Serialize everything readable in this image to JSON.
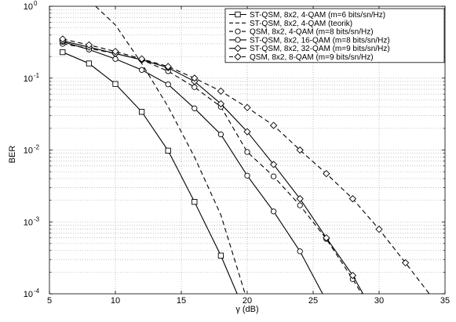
{
  "chart_data": {
    "type": "line",
    "xlabel": "γ (dB)",
    "ylabel": "BER",
    "xlim": [
      5,
      35
    ],
    "ylim": [
      0.0001,
      1
    ],
    "yscale": "log",
    "grid": true,
    "legend_position": "top-right",
    "xticks": [
      5,
      10,
      15,
      20,
      25,
      30,
      35
    ],
    "xtick_labels": [
      "5",
      "10",
      "15",
      "20",
      "25",
      "30",
      "35"
    ],
    "yticks": [
      {
        "value": 1,
        "base": "10",
        "exp": "0"
      },
      {
        "value": 0.1,
        "base": "10",
        "exp": "-1"
      },
      {
        "value": 0.01,
        "base": "10",
        "exp": "-2"
      },
      {
        "value": 0.001,
        "base": "10",
        "exp": "-3"
      },
      {
        "value": 0.0001,
        "base": "10",
        "exp": "-4"
      }
    ],
    "series": [
      {
        "name": "ST-QSM, 8x2, 4-QAM (m=6 bits/sn/Hz)",
        "line": "solid",
        "marker": "square",
        "x": [
          6,
          8,
          10,
          12,
          14,
          16,
          18,
          20
        ],
        "y": [
          0.23,
          0.16,
          0.083,
          0.034,
          0.0098,
          0.0019,
          0.00034,
          4.7e-05
        ]
      },
      {
        "name": "ST-QSM, 8x2, 4-QAM (teorik)",
        "line": "dashed",
        "marker": "none",
        "x": [
          8.5,
          10,
          12,
          14,
          16,
          18,
          20
        ],
        "y": [
          1.0,
          0.55,
          0.16,
          0.04,
          0.008,
          0.00125,
          8e-05
        ]
      },
      {
        "name": "QSM, 8x2, 4-QAM (m=8 bits/sn/Hz)",
        "line": "dashed",
        "marker": "circle",
        "x": [
          6,
          8,
          10,
          12,
          14,
          16,
          18,
          20,
          22,
          24,
          26,
          28,
          30
        ],
        "y": [
          0.3,
          0.26,
          0.22,
          0.18,
          0.125,
          0.075,
          0.04,
          0.0094,
          0.0043,
          0.0017,
          0.00058,
          0.00016,
          4e-05
        ]
      },
      {
        "name": "ST-QSM, 8x2, 16-QAM (m=8 bits/sn/Hz)",
        "line": "solid",
        "marker": "circle",
        "x": [
          6,
          8,
          10,
          12,
          14,
          16,
          18,
          20,
          22,
          24,
          26
        ],
        "y": [
          0.32,
          0.25,
          0.185,
          0.13,
          0.082,
          0.038,
          0.0165,
          0.0044,
          0.0014,
          0.00039,
          8e-05
        ]
      },
      {
        "name": "ST-QSM, 8x2, 32-QAM (m=9 bits/sn/Hz)",
        "line": "solid",
        "marker": "diamond",
        "x": [
          6,
          8,
          10,
          12,
          14,
          16,
          18,
          20,
          22,
          24,
          26,
          28,
          30
        ],
        "y": [
          0.33,
          0.27,
          0.22,
          0.18,
          0.14,
          0.09,
          0.044,
          0.018,
          0.0063,
          0.0021,
          0.0006,
          0.00018,
          4e-05
        ]
      },
      {
        "name": "QSM, 8x2, 8-QAM (m=9 bits/sn/Hz)",
        "line": "dashed",
        "marker": "diamond",
        "x": [
          6,
          8,
          10,
          12,
          14,
          16,
          18,
          20,
          22,
          24,
          26,
          28,
          30,
          32,
          34
        ],
        "y": [
          0.35,
          0.29,
          0.235,
          0.185,
          0.145,
          0.1,
          0.066,
          0.039,
          0.022,
          0.01,
          0.0047,
          0.0021,
          0.00079,
          0.00027,
          9e-05
        ]
      }
    ]
  }
}
